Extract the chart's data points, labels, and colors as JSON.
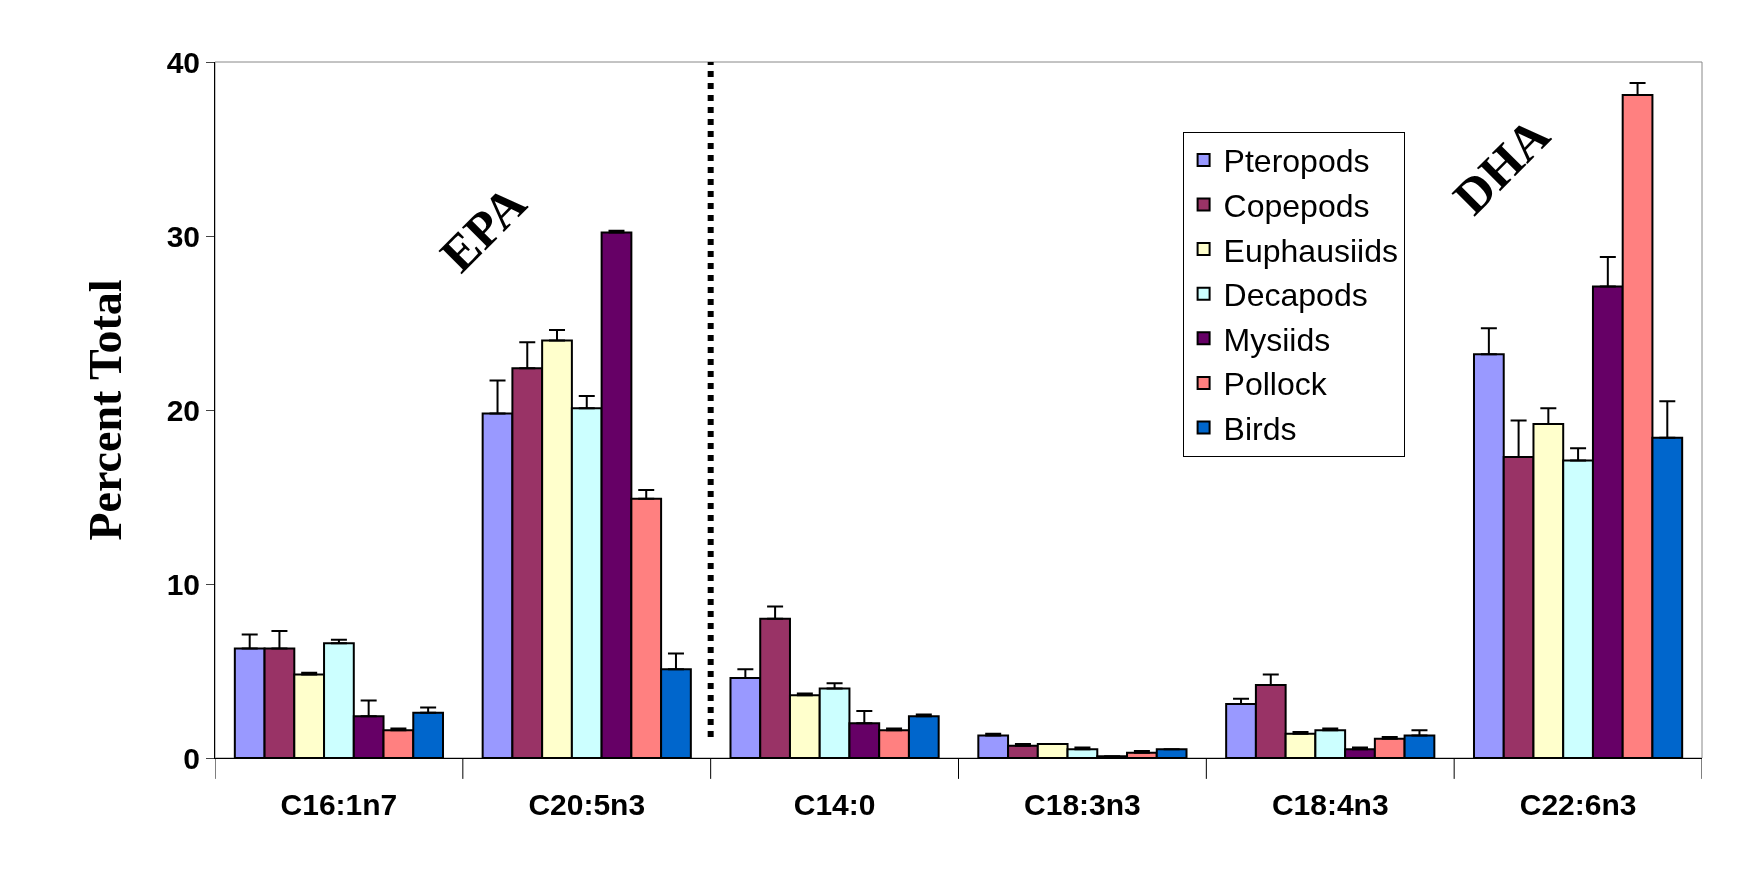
{
  "chart_data": {
    "type": "bar",
    "ylabel": "Percent Total",
    "categories": [
      "C16:1n7",
      "C20:5n3",
      "C14:0",
      "C18:3n3",
      "C18:4n3",
      "C22:6n3"
    ],
    "series": [
      {
        "name": "Pteropods",
        "color": "#9999ff",
        "values": [
          6.3,
          19.8,
          4.6,
          1.3,
          3.1,
          23.2
        ],
        "errors": [
          [
            6.3,
            7.1
          ],
          [
            19.8,
            21.7
          ],
          [
            4.6,
            5.1
          ],
          [
            1.3,
            1.4
          ],
          [
            3.1,
            3.4
          ],
          [
            23.2,
            24.7
          ]
        ]
      },
      {
        "name": "Copepods",
        "color": "#993366",
        "values": [
          6.3,
          22.4,
          8.0,
          0.7,
          4.2,
          17.3
        ],
        "errors": [
          [
            6.3,
            7.3
          ],
          [
            22.4,
            23.9
          ],
          [
            8.0,
            8.7
          ],
          [
            0.7,
            0.8
          ],
          [
            4.2,
            4.8
          ],
          [
            17.3,
            19.4
          ]
        ]
      },
      {
        "name": "Euphausiids",
        "color": "#ffffcc",
        "values": [
          4.8,
          24.0,
          3.6,
          0.8,
          1.4,
          19.2
        ],
        "errors": [
          [
            4.8,
            4.9
          ],
          [
            24.0,
            24.6
          ],
          [
            3.6,
            3.7
          ],
          [
            0.8,
            0.8
          ],
          [
            1.4,
            1.5
          ],
          [
            19.2,
            20.1
          ]
        ]
      },
      {
        "name": "Decapods",
        "color": "#ccffff",
        "values": [
          6.6,
          20.1,
          4.0,
          0.5,
          1.6,
          17.1
        ],
        "errors": [
          [
            6.6,
            6.8
          ],
          [
            20.1,
            20.8
          ],
          [
            4.0,
            4.3
          ],
          [
            0.5,
            0.6
          ],
          [
            1.6,
            1.7
          ],
          [
            17.1,
            17.8
          ]
        ]
      },
      {
        "name": "Mysiids",
        "color": "#660066",
        "values": [
          2.4,
          30.2,
          2.0,
          0.1,
          0.5,
          27.1
        ],
        "errors": [
          [
            2.4,
            3.3
          ],
          [
            30.2,
            30.3
          ],
          [
            2.0,
            2.7
          ],
          [
            0.1,
            0.1
          ],
          [
            0.5,
            0.6
          ],
          [
            27.1,
            28.8
          ]
        ]
      },
      {
        "name": "Pollock",
        "color": "#ff8080",
        "values": [
          1.6,
          14.9,
          1.6,
          0.3,
          1.1,
          38.1
        ],
        "errors": [
          [
            1.6,
            1.7
          ],
          [
            14.9,
            15.4
          ],
          [
            1.6,
            1.7
          ],
          [
            0.3,
            0.4
          ],
          [
            1.1,
            1.2
          ],
          [
            38.1,
            38.8
          ]
        ]
      },
      {
        "name": "Birds",
        "color": "#0066cc",
        "values": [
          2.6,
          5.1,
          2.4,
          0.5,
          1.3,
          18.4
        ],
        "errors": [
          [
            2.6,
            2.9
          ],
          [
            5.1,
            6.0
          ],
          [
            2.4,
            2.5
          ],
          [
            0.5,
            0.5
          ],
          [
            1.3,
            1.6
          ],
          [
            18.4,
            20.5
          ]
        ]
      }
    ],
    "ylim": [
      0,
      40
    ],
    "yticks": [
      0,
      10,
      20,
      30,
      40
    ],
    "legend": "top right",
    "annotations": [
      "EPA",
      "DHA"
    ]
  }
}
